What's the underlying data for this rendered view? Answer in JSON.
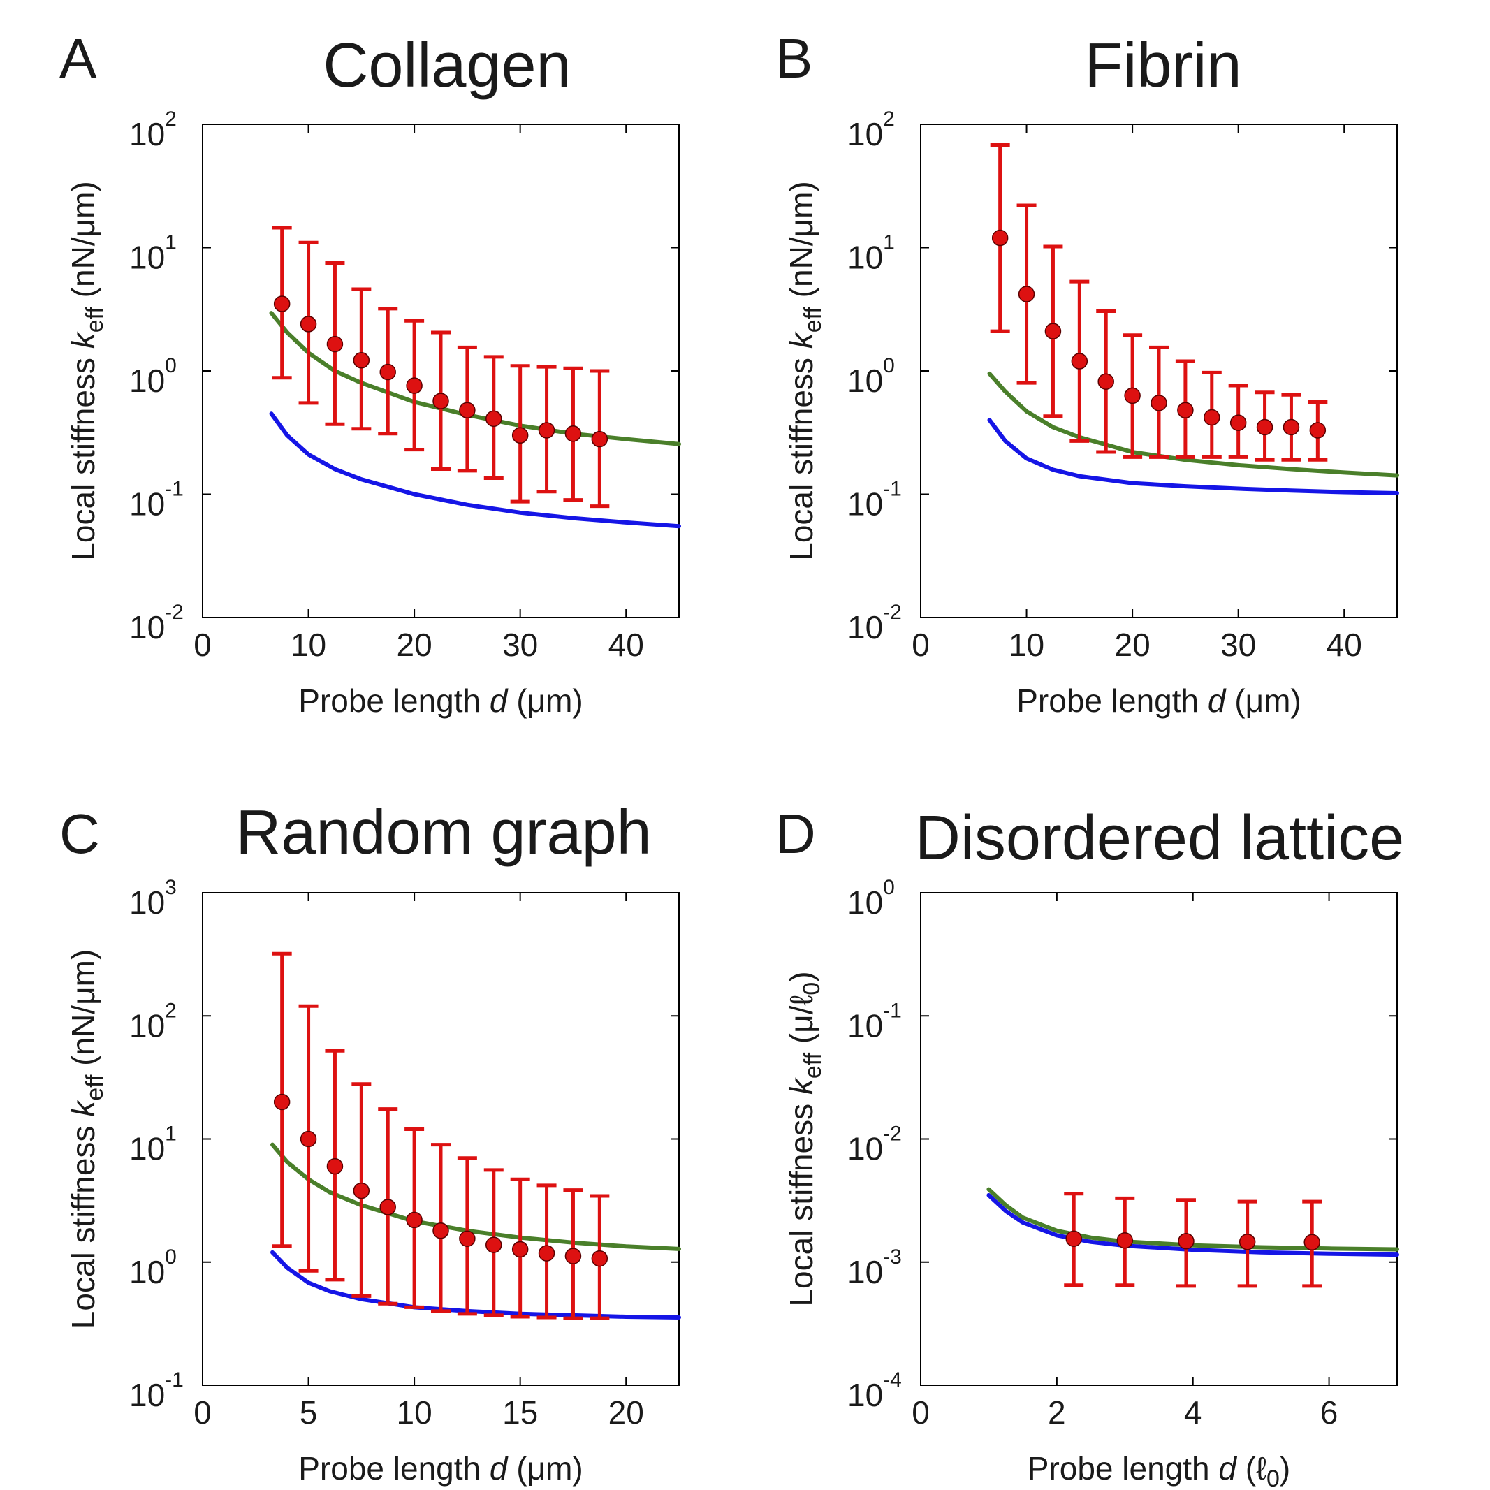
{
  "colors": {
    "data": "#dd1111",
    "green": "#4a7f2a",
    "blue": "#1515e6",
    "frame": "#000000"
  },
  "chart_data": [
    {
      "type": "scatter",
      "letter": "A",
      "title": "Collagen",
      "ylabel": {
        "prefix": "Local stiffness ",
        "var": "k",
        "sub": "eff",
        "unit": " (nN/μm)"
      },
      "xlabel": {
        "prefix": "Probe length ",
        "var": "d",
        "unit": " (μm)"
      },
      "xlim": [
        0,
        45
      ],
      "xticks": [
        0,
        10,
        20,
        30,
        40
      ],
      "ylim_exp": [
        -2,
        2
      ],
      "yticks_exp": [
        -2,
        -1,
        0,
        1,
        2
      ],
      "points": [
        {
          "x": 7.5,
          "y": 3.5,
          "lo": 0.88,
          "hi": 14.5
        },
        {
          "x": 10,
          "y": 2.4,
          "lo": 0.55,
          "hi": 11.0
        },
        {
          "x": 12.5,
          "y": 1.65,
          "lo": 0.37,
          "hi": 7.5
        },
        {
          "x": 15,
          "y": 1.22,
          "lo": 0.34,
          "hi": 4.6
        },
        {
          "x": 17.5,
          "y": 0.98,
          "lo": 0.31,
          "hi": 3.2
        },
        {
          "x": 20,
          "y": 0.76,
          "lo": 0.23,
          "hi": 2.55
        },
        {
          "x": 22.5,
          "y": 0.57,
          "lo": 0.16,
          "hi": 2.05
        },
        {
          "x": 25,
          "y": 0.48,
          "lo": 0.155,
          "hi": 1.55
        },
        {
          "x": 27.5,
          "y": 0.41,
          "lo": 0.135,
          "hi": 1.3
        },
        {
          "x": 30,
          "y": 0.3,
          "lo": 0.087,
          "hi": 1.1
        },
        {
          "x": 32.5,
          "y": 0.33,
          "lo": 0.105,
          "hi": 1.08
        },
        {
          "x": 35,
          "y": 0.31,
          "lo": 0.09,
          "hi": 1.05
        },
        {
          "x": 37.5,
          "y": 0.28,
          "lo": 0.08,
          "hi": 1.0
        }
      ],
      "curves": [
        {
          "name": "green",
          "x": [
            6.5,
            8,
            10,
            12.5,
            15,
            20,
            25,
            30,
            35,
            40,
            45
          ],
          "y": [
            2.95,
            2.05,
            1.4,
            1.0,
            0.8,
            0.56,
            0.44,
            0.36,
            0.31,
            0.28,
            0.255
          ]
        },
        {
          "name": "blue",
          "x": [
            6.5,
            8,
            10,
            12.5,
            15,
            20,
            25,
            30,
            35,
            40,
            45
          ],
          "y": [
            0.45,
            0.3,
            0.21,
            0.16,
            0.132,
            0.1,
            0.082,
            0.071,
            0.064,
            0.059,
            0.055
          ]
        }
      ]
    },
    {
      "type": "scatter",
      "letter": "B",
      "title": "Fibrin",
      "ylabel": {
        "prefix": "Local stiffness ",
        "var": "k",
        "sub": "eff",
        "unit": " (nN/μm)"
      },
      "xlabel": {
        "prefix": "Probe length ",
        "var": "d",
        "unit": " (μm)"
      },
      "xlim": [
        0,
        45
      ],
      "xticks": [
        0,
        10,
        20,
        30,
        40
      ],
      "ylim_exp": [
        -2,
        2
      ],
      "yticks_exp": [
        -2,
        -1,
        0,
        1,
        2
      ],
      "points": [
        {
          "x": 7.5,
          "y": 12.0,
          "lo": 2.1,
          "hi": 68.0
        },
        {
          "x": 10,
          "y": 4.2,
          "lo": 0.8,
          "hi": 22.0
        },
        {
          "x": 12.5,
          "y": 2.1,
          "lo": 0.43,
          "hi": 10.2
        },
        {
          "x": 15,
          "y": 1.2,
          "lo": 0.27,
          "hi": 5.3
        },
        {
          "x": 17.5,
          "y": 0.82,
          "lo": 0.22,
          "hi": 3.05
        },
        {
          "x": 20,
          "y": 0.63,
          "lo": 0.2,
          "hi": 1.95
        },
        {
          "x": 22.5,
          "y": 0.55,
          "lo": 0.2,
          "hi": 1.55
        },
        {
          "x": 25,
          "y": 0.48,
          "lo": 0.2,
          "hi": 1.2
        },
        {
          "x": 27.5,
          "y": 0.42,
          "lo": 0.2,
          "hi": 0.97
        },
        {
          "x": 30,
          "y": 0.38,
          "lo": 0.2,
          "hi": 0.76
        },
        {
          "x": 32.5,
          "y": 0.35,
          "lo": 0.19,
          "hi": 0.67
        },
        {
          "x": 35,
          "y": 0.35,
          "lo": 0.19,
          "hi": 0.64
        },
        {
          "x": 37.5,
          "y": 0.33,
          "lo": 0.19,
          "hi": 0.56
        }
      ],
      "curves": [
        {
          "name": "green",
          "x": [
            6.5,
            8,
            10,
            12.5,
            15,
            20,
            25,
            30,
            35,
            40,
            45
          ],
          "y": [
            0.95,
            0.68,
            0.47,
            0.35,
            0.29,
            0.22,
            0.19,
            0.172,
            0.16,
            0.15,
            0.142
          ]
        },
        {
          "name": "blue",
          "x": [
            6.5,
            8,
            10,
            12.5,
            15,
            20,
            25,
            30,
            35,
            40,
            45
          ],
          "y": [
            0.4,
            0.27,
            0.195,
            0.158,
            0.14,
            0.123,
            0.116,
            0.111,
            0.107,
            0.104,
            0.102
          ]
        }
      ]
    },
    {
      "type": "scatter",
      "letter": "C",
      "title": "Random graph",
      "ylabel": {
        "prefix": "Local stiffness ",
        "var": "k",
        "sub": "eff",
        "unit": " (nN/μm)"
      },
      "xlabel": {
        "prefix": "Probe length ",
        "var": "d",
        "unit": " (μm)"
      },
      "xlim": [
        0,
        22.5
      ],
      "xticks": [
        0,
        5,
        10,
        15,
        20
      ],
      "ylim_exp": [
        -1,
        3
      ],
      "yticks_exp": [
        -1,
        0,
        1,
        2,
        3
      ],
      "points": [
        {
          "x": 3.75,
          "y": 20.0,
          "lo": 1.35,
          "hi": 320.0
        },
        {
          "x": 5,
          "y": 10.0,
          "lo": 0.85,
          "hi": 120.0
        },
        {
          "x": 6.25,
          "y": 6.0,
          "lo": 0.72,
          "hi": 52.0
        },
        {
          "x": 7.5,
          "y": 3.8,
          "lo": 0.53,
          "hi": 28.0
        },
        {
          "x": 8.75,
          "y": 2.8,
          "lo": 0.46,
          "hi": 17.5
        },
        {
          "x": 10,
          "y": 2.2,
          "lo": 0.43,
          "hi": 12.0
        },
        {
          "x": 11.25,
          "y": 1.8,
          "lo": 0.4,
          "hi": 9.0
        },
        {
          "x": 12.5,
          "y": 1.55,
          "lo": 0.38,
          "hi": 7.0
        },
        {
          "x": 13.75,
          "y": 1.38,
          "lo": 0.37,
          "hi": 5.6
        },
        {
          "x": 15,
          "y": 1.27,
          "lo": 0.36,
          "hi": 4.7
        },
        {
          "x": 16.25,
          "y": 1.18,
          "lo": 0.355,
          "hi": 4.2
        },
        {
          "x": 17.5,
          "y": 1.12,
          "lo": 0.35,
          "hi": 3.85
        },
        {
          "x": 18.75,
          "y": 1.07,
          "lo": 0.35,
          "hi": 3.45
        }
      ],
      "curves": [
        {
          "name": "green",
          "x": [
            3.3,
            4,
            5,
            6,
            7.5,
            10,
            12.5,
            15,
            17.5,
            20,
            22.5
          ],
          "y": [
            9.0,
            6.5,
            4.7,
            3.7,
            2.9,
            2.15,
            1.8,
            1.58,
            1.44,
            1.34,
            1.28
          ]
        },
        {
          "name": "blue",
          "x": [
            3.3,
            4,
            5,
            6,
            7.5,
            10,
            12.5,
            15,
            17.5,
            20,
            22.5
          ],
          "y": [
            1.2,
            0.9,
            0.68,
            0.58,
            0.5,
            0.43,
            0.4,
            0.38,
            0.37,
            0.36,
            0.355
          ]
        }
      ]
    },
    {
      "type": "scatter",
      "letter": "D",
      "title": "Disordered lattice",
      "ylabel": {
        "prefix": "Local stiffness ",
        "var": "k",
        "sub": "eff",
        "unit": " (μ/ℓ",
        "unit_sub": "0",
        "unit_close": ")"
      },
      "xlabel": {
        "prefix": "Probe length ",
        "var": "d",
        "unit": " (ℓ",
        "unit_sub": "0",
        "unit_close": ")"
      },
      "xlim": [
        0,
        7
      ],
      "xticks": [
        0,
        2,
        4,
        6
      ],
      "ylim_exp": [
        -4,
        0
      ],
      "yticks_exp": [
        -4,
        -3,
        -2,
        -1,
        0
      ],
      "points": [
        {
          "x": 2.25,
          "y": 0.00155,
          "lo": 0.00065,
          "hi": 0.0036
        },
        {
          "x": 3.0,
          "y": 0.0015,
          "lo": 0.00065,
          "hi": 0.0033
        },
        {
          "x": 3.9,
          "y": 0.00148,
          "lo": 0.00064,
          "hi": 0.0032
        },
        {
          "x": 4.8,
          "y": 0.00146,
          "lo": 0.00064,
          "hi": 0.0031
        },
        {
          "x": 5.75,
          "y": 0.00145,
          "lo": 0.00064,
          "hi": 0.0031
        }
      ],
      "curves": [
        {
          "name": "green",
          "x": [
            1.0,
            1.25,
            1.5,
            2.0,
            2.5,
            3.0,
            4.0,
            5.0,
            6.0,
            7.0
          ],
          "y": [
            0.0039,
            0.0029,
            0.0023,
            0.0018,
            0.00158,
            0.00147,
            0.00137,
            0.00132,
            0.00129,
            0.00127
          ]
        },
        {
          "name": "blue",
          "x": [
            1.0,
            1.25,
            1.5,
            2.0,
            2.5,
            3.0,
            4.0,
            5.0,
            6.0,
            7.0
          ],
          "y": [
            0.0035,
            0.0026,
            0.0021,
            0.00165,
            0.00146,
            0.00136,
            0.00126,
            0.0012,
            0.00117,
            0.00115
          ]
        }
      ]
    }
  ]
}
